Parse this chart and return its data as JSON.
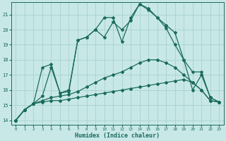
{
  "xlabel": "Humidex (Indice chaleur)",
  "bg_color": "#c8e8e8",
  "grid_color": "#a8d0d0",
  "line_color": "#1a6b5a",
  "xlim": [
    -0.5,
    23.5
  ],
  "ylim": [
    13.7,
    21.8
  ],
  "yticks": [
    14,
    15,
    16,
    17,
    18,
    19,
    20,
    21
  ],
  "xticks": [
    0,
    1,
    2,
    3,
    4,
    5,
    6,
    7,
    8,
    9,
    10,
    11,
    12,
    13,
    14,
    15,
    16,
    17,
    18,
    19,
    20,
    21,
    22,
    23
  ],
  "series": [
    {
      "x": [
        0,
        1,
        2,
        3,
        4,
        5,
        6,
        7,
        8,
        9,
        10,
        11,
        12,
        13,
        14,
        15,
        16,
        17,
        18,
        19,
        20,
        21,
        22,
        23
      ],
      "y": [
        14.0,
        14.7,
        15.1,
        15.2,
        15.3,
        15.3,
        15.4,
        15.5,
        15.6,
        15.7,
        15.8,
        15.9,
        16.0,
        16.1,
        16.2,
        16.3,
        16.4,
        16.5,
        16.6,
        16.7,
        16.5,
        16.0,
        15.3,
        15.2
      ],
      "marker": "D",
      "ms": 2.0,
      "lw": 0.9
    },
    {
      "x": [
        0,
        1,
        2,
        3,
        4,
        5,
        6,
        7,
        8,
        9,
        10,
        11,
        12,
        13,
        14,
        15,
        16,
        17,
        18,
        19,
        20,
        21,
        22,
        23
      ],
      "y": [
        14.0,
        14.7,
        15.1,
        15.3,
        15.5,
        15.6,
        15.7,
        15.9,
        16.2,
        16.5,
        16.8,
        17.0,
        17.2,
        17.5,
        17.8,
        18.0,
        18.0,
        17.8,
        17.5,
        17.0,
        16.5,
        16.0,
        15.3,
        15.2
      ],
      "marker": "D",
      "ms": 2.0,
      "lw": 0.9
    },
    {
      "x": [
        0,
        1,
        2,
        3,
        4,
        5,
        6,
        7,
        8,
        9,
        10,
        11,
        12,
        13,
        14,
        15,
        16,
        17,
        18,
        19,
        20,
        21,
        22,
        23
      ],
      "y": [
        14.0,
        14.7,
        15.1,
        15.6,
        17.5,
        15.8,
        16.0,
        19.3,
        19.5,
        20.0,
        19.5,
        20.5,
        20.0,
        20.6,
        21.7,
        21.3,
        20.8,
        20.1,
        19.0,
        18.0,
        17.2,
        17.2,
        15.5,
        15.2
      ],
      "marker": "*",
      "ms": 3.0,
      "lw": 0.9
    },
    {
      "x": [
        0,
        1,
        2,
        3,
        4,
        5,
        6,
        7,
        8,
        9,
        10,
        11,
        12,
        13,
        14,
        15,
        16,
        17,
        18,
        19,
        20,
        21,
        22,
        23
      ],
      "y": [
        14.0,
        14.7,
        15.1,
        17.5,
        17.7,
        15.8,
        15.9,
        19.3,
        19.5,
        20.0,
        20.8,
        20.8,
        19.2,
        20.8,
        21.7,
        21.4,
        20.8,
        20.3,
        19.8,
        18.0,
        16.0,
        17.0,
        15.5,
        15.2
      ],
      "marker": "*",
      "ms": 3.0,
      "lw": 0.9
    }
  ]
}
